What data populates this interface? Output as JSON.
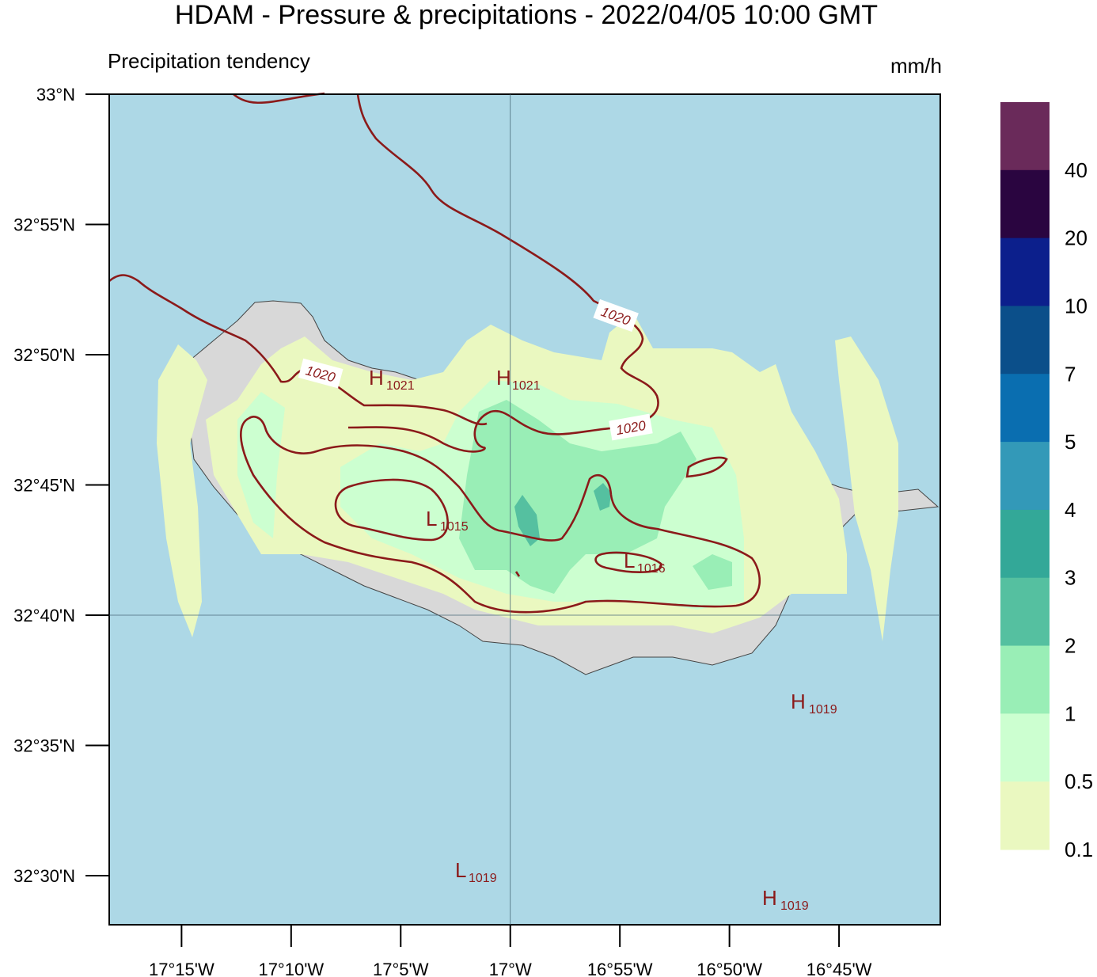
{
  "title": "HDAM - Pressure & precipitations  -  2022/04/05  10:00 GMT",
  "subtitle": "Precipitation tendency",
  "unit": "mm/h",
  "map": {
    "lonlim": [
      -17.305,
      -16.673
    ],
    "latlim": [
      32.4686,
      33
    ],
    "lonticks": [
      {
        "value": -17.25,
        "label": "17°15'W"
      },
      {
        "value": -17.166667,
        "label": "17°10'W"
      },
      {
        "value": -17.083333,
        "label": "17°5'W"
      },
      {
        "value": -17,
        "label": "17°W"
      },
      {
        "value": -16.916667,
        "label": "16°55'W"
      },
      {
        "value": -16.833333,
        "label": "16°50'W"
      },
      {
        "value": -16.75,
        "label": "16°45'W"
      }
    ],
    "latticks": [
      {
        "value": 33,
        "label": "33°N"
      },
      {
        "value": 32.916667,
        "label": "32°55'N"
      },
      {
        "value": 32.833333,
        "label": "32°50'N"
      },
      {
        "value": 32.75,
        "label": "32°45'N"
      },
      {
        "value": 32.666667,
        "label": "32°40'N"
      },
      {
        "value": 32.583333,
        "label": "32°35'N"
      },
      {
        "value": 32.5,
        "label": "32°30'N"
      }
    ],
    "grid_lon": -17,
    "grid_lat": 32.666667
  },
  "colorbar": {
    "levels": [
      40,
      20,
      10,
      7,
      5,
      4,
      3,
      2,
      1,
      0.5,
      0.1
    ],
    "colors": [
      "#6a2a5a",
      "#2a0540",
      "#0c1f8c",
      "#0b4f8a",
      "#0a6eb0",
      "#3399b8",
      "#33a898",
      "#55c0a0",
      "#99eeb6",
      "#ccffd0",
      "#eaf8c0"
    ]
  },
  "isobar_labels": [
    1020,
    1020,
    1020
  ],
  "pressure_centers": [
    {
      "letter": "H",
      "value": 1021
    },
    {
      "letter": "H",
      "value": 1021
    },
    {
      "letter": "L",
      "value": 1015
    },
    {
      "letter": "L",
      "value": 1016
    },
    {
      "letter": "H",
      "value": 1019
    },
    {
      "letter": "L",
      "value": 1019
    },
    {
      "letter": "H",
      "value": 1019
    }
  ]
}
